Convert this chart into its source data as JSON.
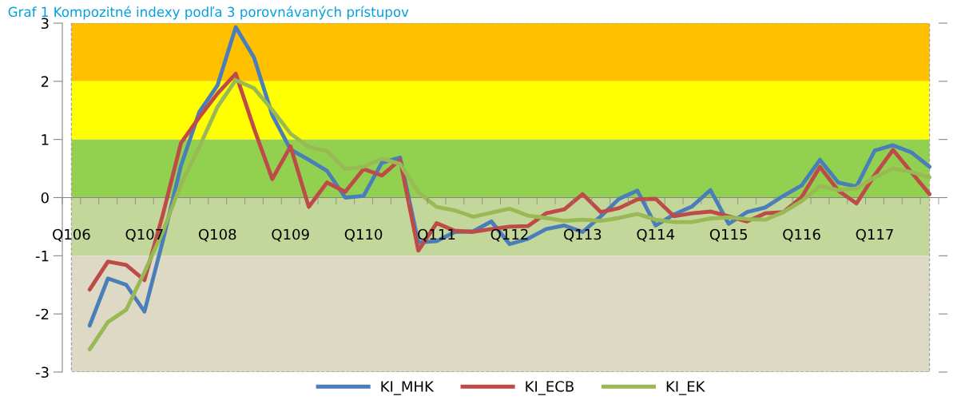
{
  "chart_data": {
    "type": "line",
    "title": "Graf 1 Kompozitné indexy podľa 3 porovnávaných prístupov",
    "categories": [
      "Q106",
      null,
      null,
      null,
      "Q107",
      null,
      null,
      null,
      "Q108",
      null,
      null,
      null,
      "Q109",
      null,
      null,
      null,
      "Q110",
      null,
      null,
      null,
      "Q111",
      null,
      null,
      null,
      "Q112",
      null,
      null,
      null,
      "Q113",
      null,
      null,
      null,
      "Q114",
      null,
      null,
      null,
      "Q115",
      null,
      null,
      null,
      "Q116",
      null,
      null,
      null,
      "Q117",
      null,
      null,
      null
    ],
    "series": [
      {
        "name": "KI_MHK",
        "color": "#4a7ebb",
        "values": [
          null,
          -2.2,
          -1.39,
          -1.5,
          -1.96,
          -0.75,
          0.55,
          1.47,
          1.93,
          2.93,
          2.41,
          1.42,
          0.83,
          0.65,
          0.46,
          0.0,
          0.03,
          0.6,
          0.69,
          -0.77,
          -0.75,
          -0.59,
          -0.58,
          -0.41,
          -0.8,
          -0.71,
          -0.54,
          -0.48,
          -0.59,
          -0.32,
          -0.02,
          0.12,
          -0.48,
          -0.29,
          -0.15,
          0.13,
          -0.45,
          -0.25,
          -0.17,
          0.03,
          0.21,
          0.65,
          0.26,
          0.19,
          0.81,
          0.9,
          0.78,
          0.53
        ]
      },
      {
        "name": "KI_ECB",
        "color": "#be4b48",
        "values": [
          null,
          -1.58,
          -1.1,
          -1.16,
          -1.42,
          -0.3,
          0.94,
          1.38,
          1.79,
          2.13,
          1.19,
          0.32,
          0.88,
          -0.16,
          0.26,
          0.1,
          0.49,
          0.38,
          0.65,
          -0.91,
          -0.44,
          -0.57,
          -0.59,
          -0.54,
          -0.5,
          -0.49,
          -0.27,
          -0.2,
          0.06,
          -0.25,
          -0.18,
          -0.03,
          -0.02,
          -0.32,
          -0.27,
          -0.24,
          -0.32,
          -0.41,
          -0.27,
          -0.25,
          0.01,
          0.53,
          0.12,
          -0.1,
          0.39,
          0.82,
          0.44,
          0.06
        ]
      },
      {
        "name": "KI_EK",
        "color": "#98b954",
        "values": [
          null,
          -2.61,
          -2.14,
          -1.93,
          -1.28,
          -0.59,
          0.23,
          0.87,
          1.56,
          2.02,
          1.88,
          1.51,
          1.1,
          0.87,
          0.8,
          0.49,
          0.53,
          0.67,
          0.58,
          0.09,
          -0.16,
          -0.22,
          -0.33,
          -0.26,
          -0.19,
          -0.31,
          -0.35,
          -0.4,
          -0.38,
          -0.4,
          -0.35,
          -0.28,
          -0.38,
          -0.42,
          -0.42,
          -0.36,
          -0.34,
          -0.37,
          -0.38,
          -0.25,
          -0.06,
          0.2,
          0.13,
          0.16,
          0.35,
          0.5,
          0.44,
          0.35
        ]
      }
    ],
    "bands": [
      {
        "axis": "y",
        "from": 2,
        "to": 3,
        "color": "#ffc000"
      },
      {
        "axis": "y",
        "from": 1,
        "to": 2,
        "color": "#ffff00"
      },
      {
        "axis": "y",
        "from": 0,
        "to": 1,
        "color": "#92d050"
      },
      {
        "axis": "y",
        "from": -1,
        "to": 0,
        "color": "#c4d79b"
      },
      {
        "axis": "y",
        "from": -3,
        "to": -1,
        "color": "#ddd9c4"
      }
    ],
    "ylim": [
      -3,
      3
    ],
    "yticks": [
      -3,
      -2,
      -1,
      0,
      1,
      2,
      3
    ],
    "grid": false,
    "legend": "bottom",
    "marker": "none",
    "line_style": "solid"
  }
}
